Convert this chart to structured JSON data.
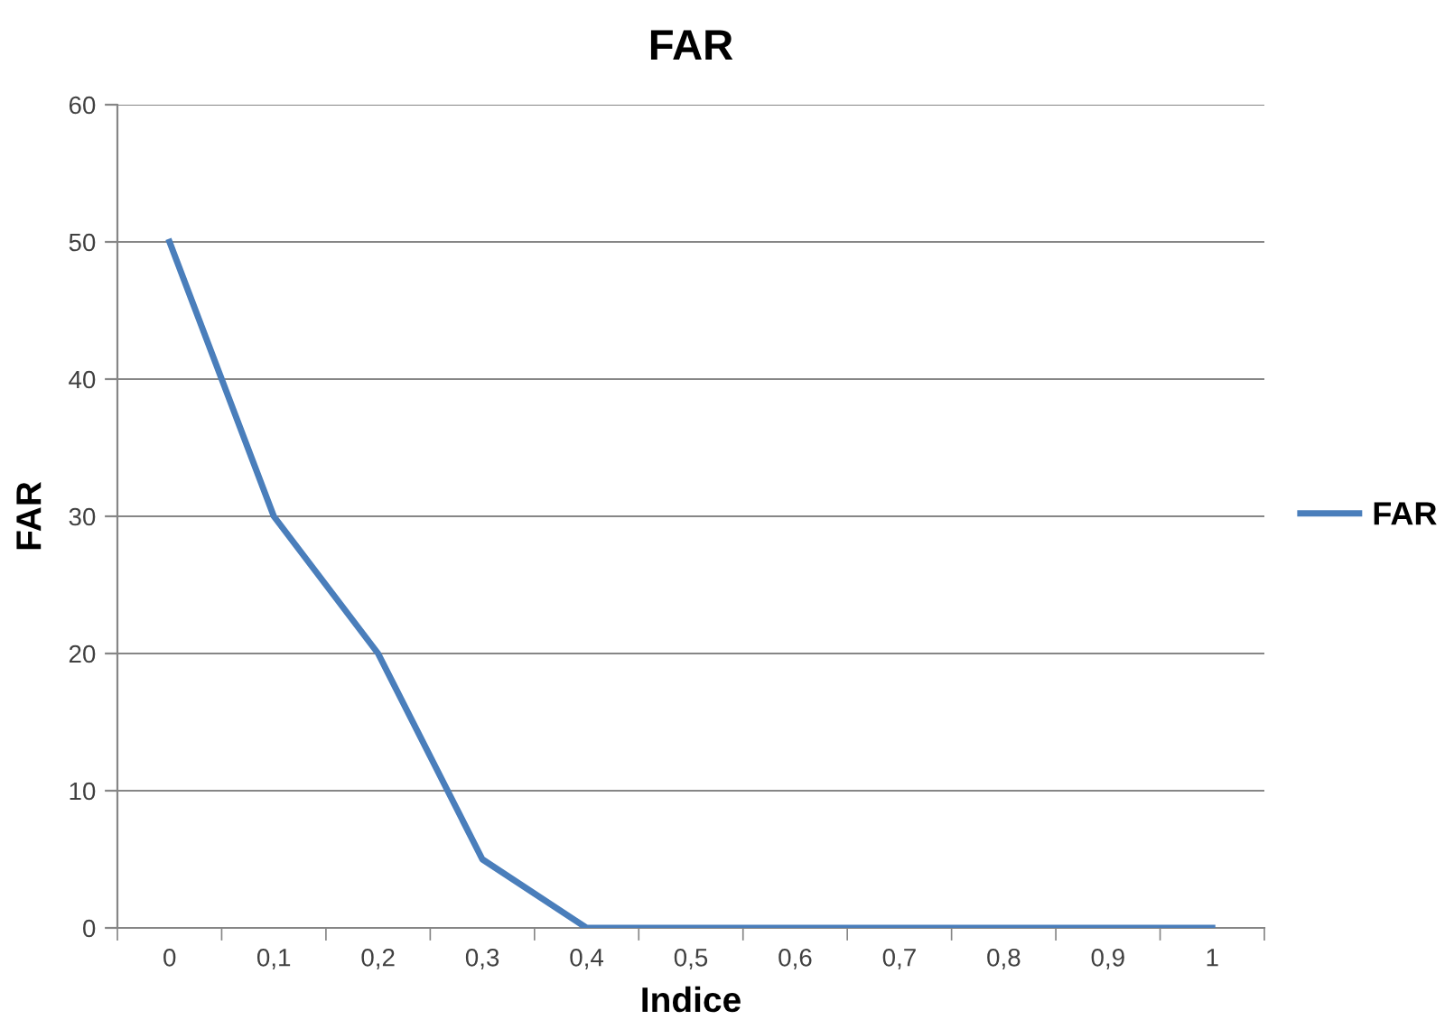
{
  "chart_data": {
    "type": "line",
    "title": "FAR",
    "xlabel": "Indice",
    "ylabel": "FAR",
    "categories": [
      "0",
      "0,1",
      "0,2",
      "0,3",
      "0,4",
      "0,5",
      "0,6",
      "0,7",
      "0,8",
      "0,9",
      "1"
    ],
    "series": [
      {
        "name": "FAR",
        "color": "#4a7ebb",
        "values": [
          50,
          30,
          20,
          5,
          0,
          0,
          0,
          0,
          0,
          0,
          0
        ]
      }
    ],
    "ylim": [
      0,
      60
    ],
    "yticks": [
      0,
      10,
      20,
      30,
      40,
      50,
      60
    ],
    "grid": "y",
    "legend": "right",
    "marker": "none",
    "line_style": "solid"
  }
}
